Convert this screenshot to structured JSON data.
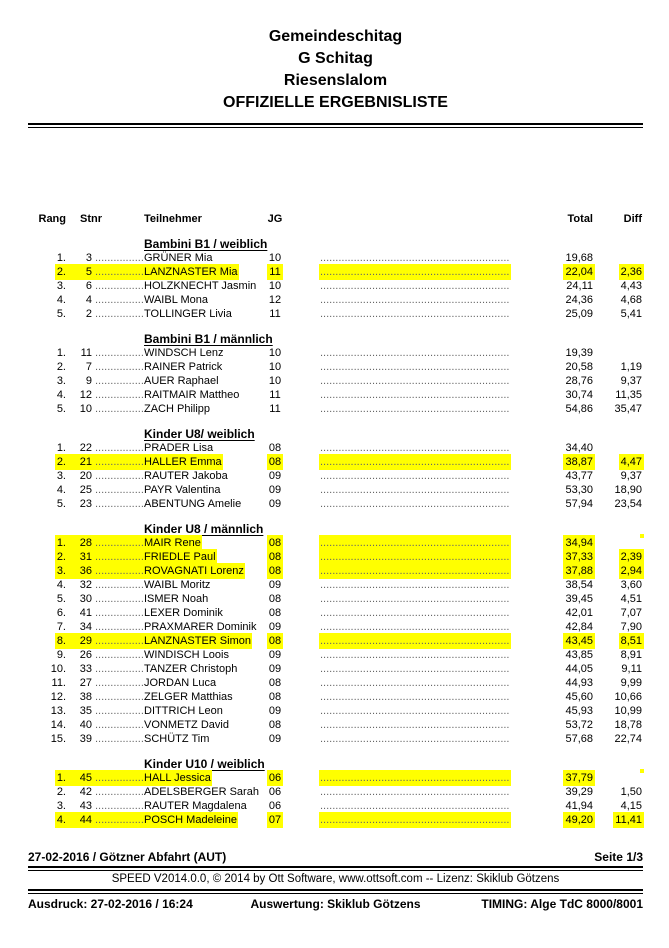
{
  "title": {
    "lines": [
      "Gemeindeschitag",
      "G Schitag",
      "Riesenslalom",
      "OFFIZIELLE ERGEBNISLISTE"
    ]
  },
  "columns": {
    "rang": "Rang",
    "stnr": "Stnr",
    "teilnehmer": "Teilnehmer",
    "jg": "JG",
    "total": "Total",
    "diff": "Diff"
  },
  "leaders": {
    "short": "..................",
    "long": "..................................................................................."
  },
  "colors": {
    "highlight": "#ffff00"
  },
  "sections": [
    {
      "name": "Bambini B1 / weiblich",
      "rows": [
        {
          "rang": "1.",
          "stnr": "3",
          "name": "GRÜNER Mia",
          "jg": "10",
          "total": "19,68",
          "diff": "",
          "hl": false
        },
        {
          "rang": "2.",
          "stnr": "5",
          "name": "LANZNASTER Mia",
          "jg": "11",
          "total": "22,04",
          "diff": "2,36",
          "hl": true
        },
        {
          "rang": "3.",
          "stnr": "6",
          "name": "HOLZKNECHT Jasmin",
          "jg": "10",
          "total": "24,11",
          "diff": "4,43",
          "hl": false
        },
        {
          "rang": "4.",
          "stnr": "4",
          "name": "WAIBL Mona",
          "jg": "12",
          "total": "24,36",
          "diff": "4,68",
          "hl": false
        },
        {
          "rang": "5.",
          "stnr": "2",
          "name": "TOLLINGER Livia",
          "jg": "11",
          "total": "25,09",
          "diff": "5,41",
          "hl": false
        }
      ]
    },
    {
      "name": "Bambini B1 / männlich",
      "rows": [
        {
          "rang": "1.",
          "stnr": "11",
          "name": "WINDSCH Lenz",
          "jg": "10",
          "total": "19,39",
          "diff": "",
          "hl": false
        },
        {
          "rang": "2.",
          "stnr": "7",
          "name": "RAINER Patrick",
          "jg": "10",
          "total": "20,58",
          "diff": "1,19",
          "hl": false
        },
        {
          "rang": "3.",
          "stnr": "9",
          "name": "AUER Raphael",
          "jg": "10",
          "total": "28,76",
          "diff": "9,37",
          "hl": false
        },
        {
          "rang": "4.",
          "stnr": "12",
          "name": "RAITMAIR Mattheo",
          "jg": "11",
          "total": "30,74",
          "diff": "11,35",
          "hl": false
        },
        {
          "rang": "5.",
          "stnr": "10",
          "name": "ZACH Philipp",
          "jg": "11",
          "total": "54,86",
          "diff": "35,47",
          "hl": false
        }
      ]
    },
    {
      "name": "Kinder U8/ weiblich",
      "rows": [
        {
          "rang": "1.",
          "stnr": "22",
          "name": "PRADER Lisa",
          "jg": "08",
          "total": "34,40",
          "diff": "",
          "hl": false
        },
        {
          "rang": "2.",
          "stnr": "21",
          "name": "HALLER Emma",
          "jg": "08",
          "total": "38,87",
          "diff": "4,47",
          "hl": true
        },
        {
          "rang": "3.",
          "stnr": "20",
          "name": "RAUTER Jakoba",
          "jg": "09",
          "total": "43,77",
          "diff": "9,37",
          "hl": false
        },
        {
          "rang": "4.",
          "stnr": "25",
          "name": "PAYR Valentina",
          "jg": "09",
          "total": "53,30",
          "diff": "18,90",
          "hl": false
        },
        {
          "rang": "5.",
          "stnr": "23",
          "name": "ABENTUNG Amelie",
          "jg": "09",
          "total": "57,94",
          "diff": "23,54",
          "hl": false
        }
      ]
    },
    {
      "name": "Kinder U8 / männlich",
      "rows": [
        {
          "rang": "1.",
          "stnr": "28",
          "name": "MAIR Rene",
          "jg": "08",
          "total": "34,94",
          "diff": "",
          "hl": true
        },
        {
          "rang": "2.",
          "stnr": "31",
          "name": "FRIEDLE Paul",
          "jg": "08",
          "total": "37,33",
          "diff": "2,39",
          "hl": true
        },
        {
          "rang": "3.",
          "stnr": "36",
          "name": "ROVAGNATI Lorenz",
          "jg": "08",
          "total": "37,88",
          "diff": "2,94",
          "hl": true
        },
        {
          "rang": "4.",
          "stnr": "32",
          "name": "WAIBL Moritz",
          "jg": "09",
          "total": "38,54",
          "diff": "3,60",
          "hl": false
        },
        {
          "rang": "5.",
          "stnr": "30",
          "name": "ISMER Noah",
          "jg": "08",
          "total": "39,45",
          "diff": "4,51",
          "hl": false
        },
        {
          "rang": "6.",
          "stnr": "41",
          "name": "LEXER Dominik",
          "jg": "08",
          "total": "42,01",
          "diff": "7,07",
          "hl": false
        },
        {
          "rang": "7.",
          "stnr": "34",
          "name": "PRAXMARER Dominik",
          "jg": "09",
          "total": "42,84",
          "diff": "7,90",
          "hl": false
        },
        {
          "rang": "8.",
          "stnr": "29",
          "name": "LANZNASTER Simon",
          "jg": "08",
          "total": "43,45",
          "diff": "8,51",
          "hl": true
        },
        {
          "rang": "9.",
          "stnr": "26",
          "name": "WINDISCH Loois",
          "jg": "09",
          "total": "43,85",
          "diff": "8,91",
          "hl": false
        },
        {
          "rang": "10.",
          "stnr": "33",
          "name": "TANZER Christoph",
          "jg": "09",
          "total": "44,05",
          "diff": "9,11",
          "hl": false
        },
        {
          "rang": "11.",
          "stnr": "27",
          "name": "JORDAN Luca",
          "jg": "08",
          "total": "44,93",
          "diff": "9,99",
          "hl": false
        },
        {
          "rang": "12.",
          "stnr": "38",
          "name": "ZELGER Matthias",
          "jg": "08",
          "total": "45,60",
          "diff": "10,66",
          "hl": false
        },
        {
          "rang": "13.",
          "stnr": "35",
          "name": "DITTRICH Leon",
          "jg": "09",
          "total": "45,93",
          "diff": "10,99",
          "hl": false
        },
        {
          "rang": "14.",
          "stnr": "40",
          "name": "VONMETZ David",
          "jg": "08",
          "total": "53,72",
          "diff": "18,78",
          "hl": false
        },
        {
          "rang": "15.",
          "stnr": "39",
          "name": "SCHÜTZ Tim",
          "jg": "09",
          "total": "57,68",
          "diff": "22,74",
          "hl": false
        }
      ]
    },
    {
      "name": "Kinder U10 / weiblich",
      "rows": [
        {
          "rang": "1.",
          "stnr": "45",
          "name": "HALL Jessica",
          "jg": "06",
          "total": "37,79",
          "diff": "",
          "hl": true
        },
        {
          "rang": "2.",
          "stnr": "42",
          "name": "ADELSBERGER Sarah",
          "jg": "06",
          "total": "39,29",
          "diff": "1,50",
          "hl": false
        },
        {
          "rang": "3.",
          "stnr": "43",
          "name": "RAUTER Magdalena",
          "jg": "06",
          "total": "41,94",
          "diff": "4,15",
          "hl": false
        },
        {
          "rang": "4.",
          "stnr": "44",
          "name": "POSCH Madeleine",
          "jg": "07",
          "total": "49,20",
          "diff": "11,41",
          "hl": true
        }
      ]
    }
  ],
  "footer": {
    "event_line": "27-02-2016 / Götzner Abfahrt (AUT)",
    "page": "Seite 1/3",
    "software_line": "SPEED V2014.0.0, © 2014 by Ott Software, www.ottsoft.com  --  Lizenz: Skiklub Götzens",
    "printed": "Ausdruck: 27-02-2016 / 16:24",
    "evaluation": "Auswertung: Skiklub Götzens",
    "timing": "TIMING: Alge TdC 8000/8001"
  }
}
